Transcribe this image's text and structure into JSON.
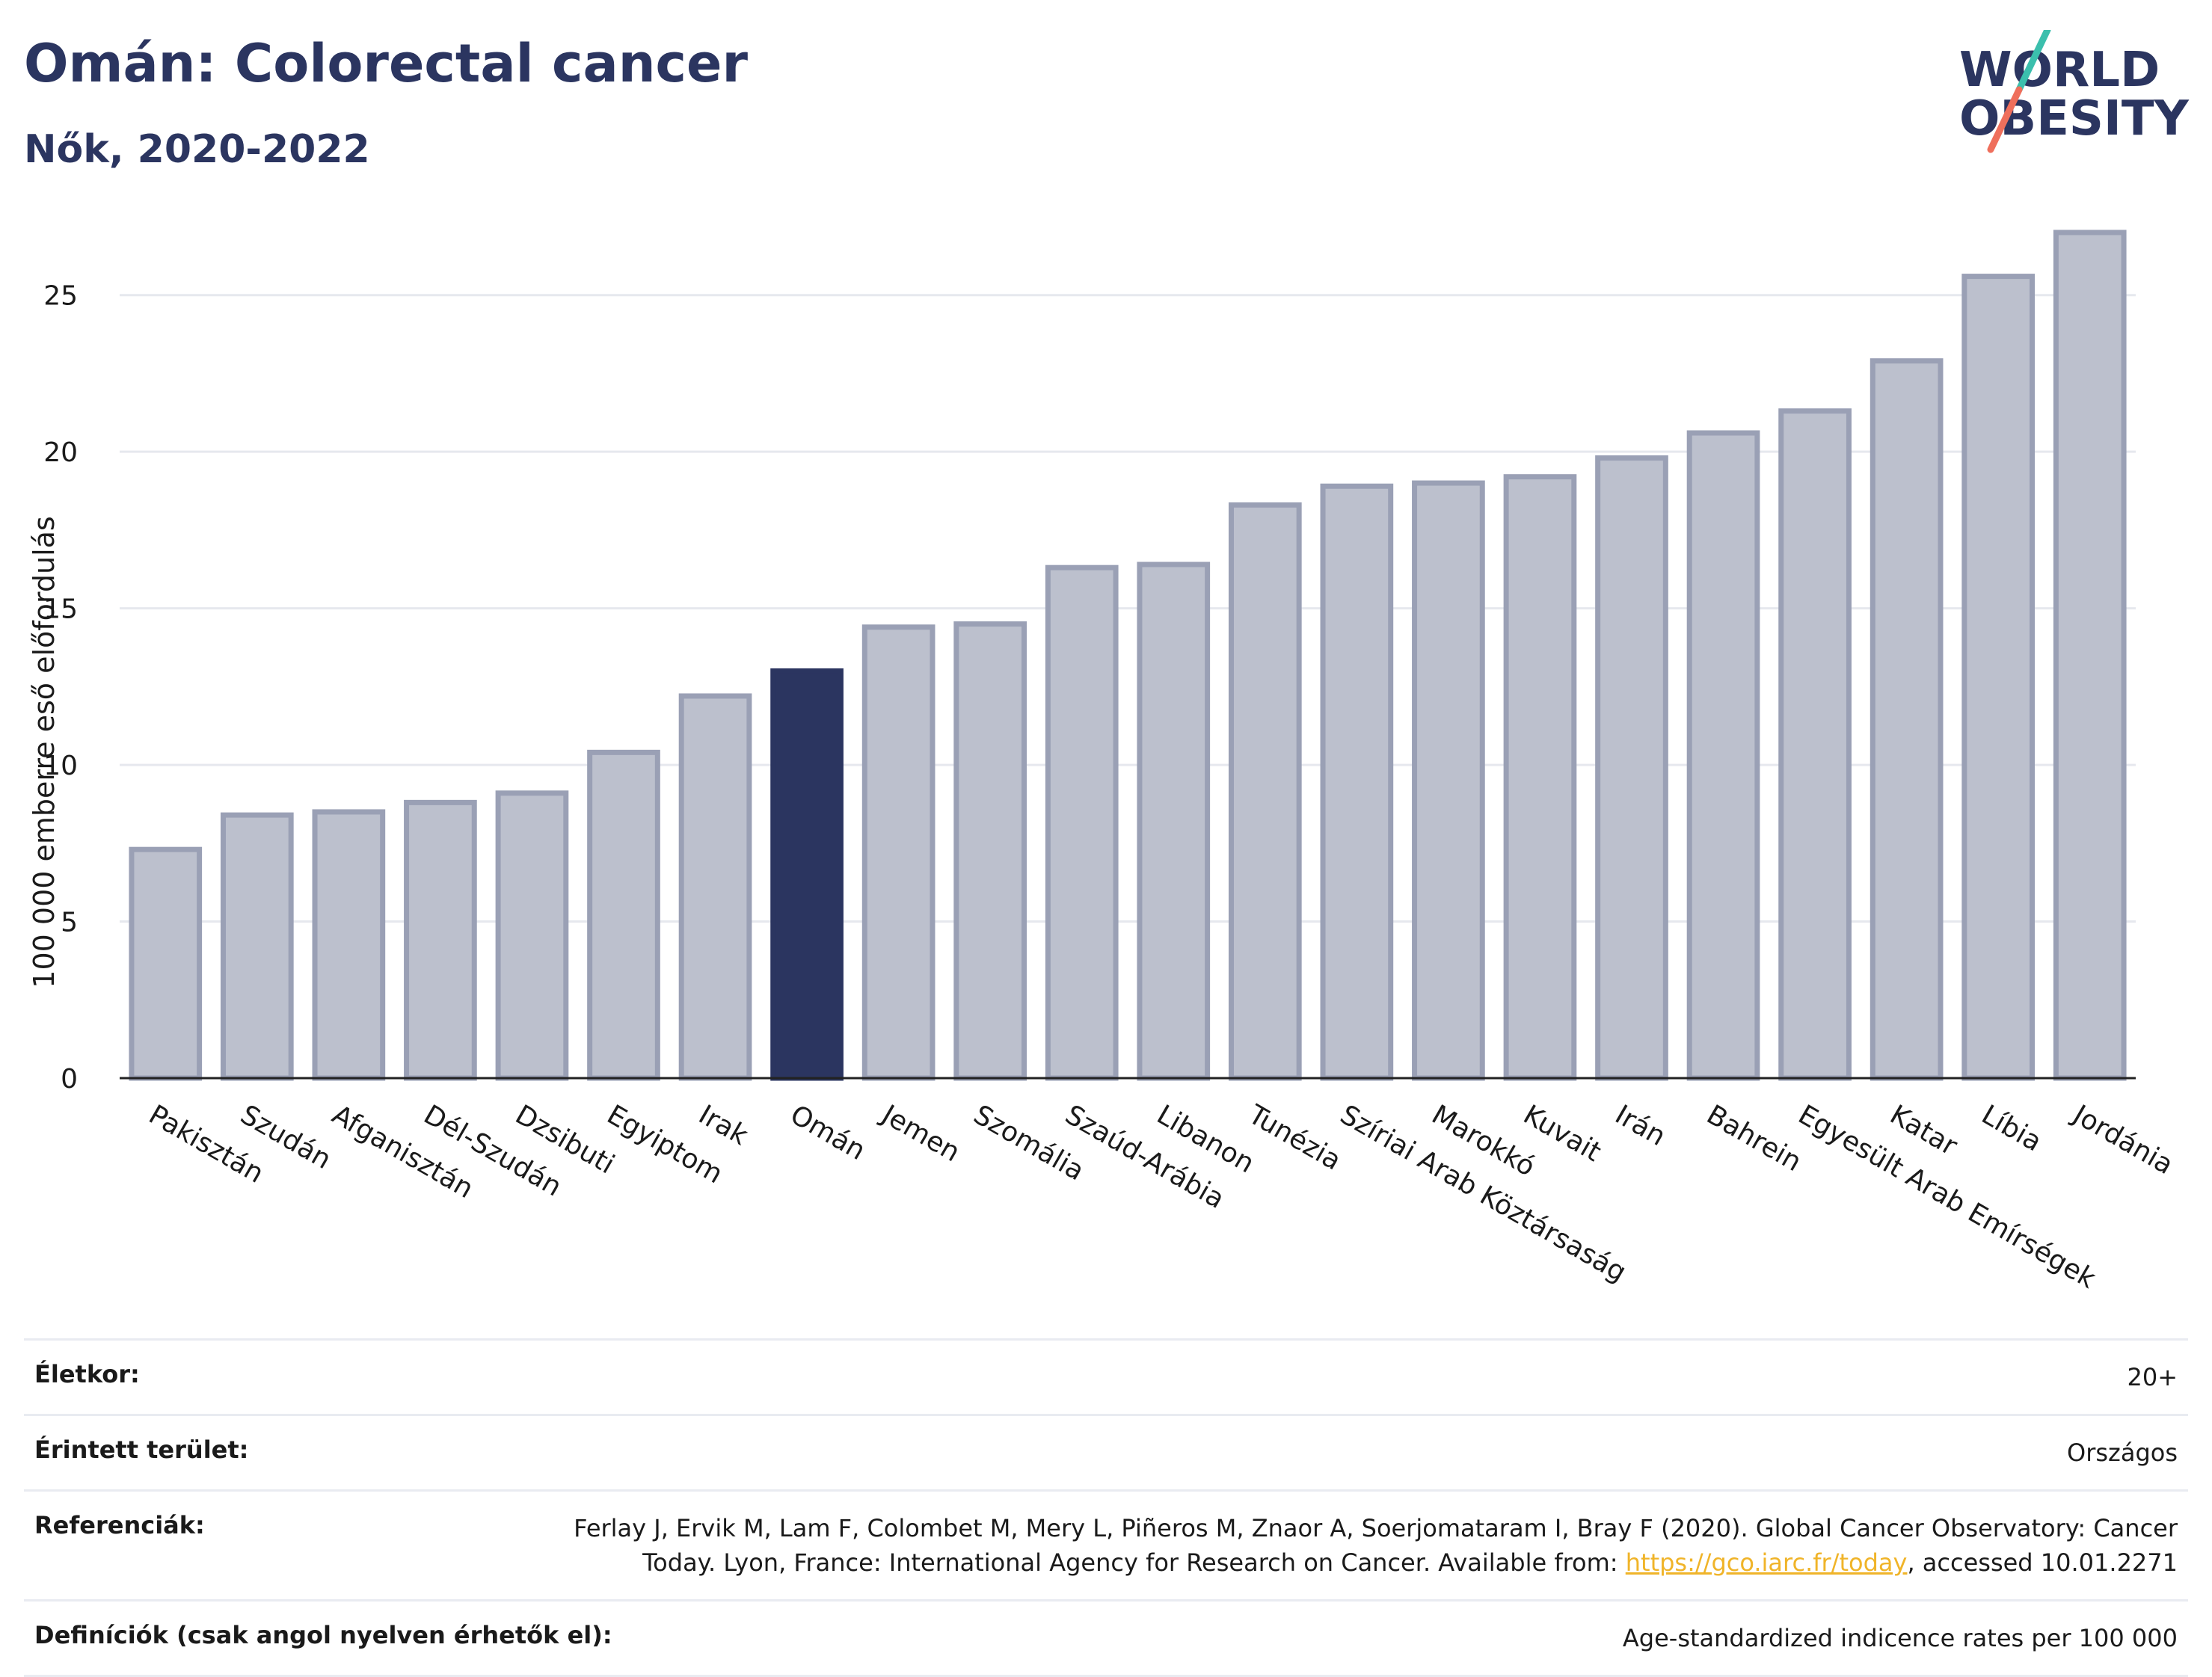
{
  "header": {
    "title": "Omán: Colorectal cancer",
    "subtitle": "Nők, 2020-2022"
  },
  "logo": {
    "line1": "WORLD",
    "line2": "OBESITY",
    "slash_colors": [
      "#3bbfad",
      "#ef6f5c"
    ],
    "text_color": "#2b3560"
  },
  "colors": {
    "highlight": "#2b3560",
    "bar_fill": "#bcc0cd",
    "bar_stroke": "#9aa0b5",
    "grid": "#e6e8ee",
    "axis": "#222222"
  },
  "chart_data": {
    "type": "bar",
    "title": "Omán: Colorectal cancer",
    "subtitle": "Nők, 2020-2022",
    "ylabel": "100 000 emberre eső előfordulás",
    "xlabel": "",
    "ylim": [
      0,
      27.5
    ],
    "yticks": [
      0,
      5,
      10,
      15,
      20,
      25
    ],
    "grid": true,
    "highlight_category": "Omán",
    "categories": [
      "Pakisztán",
      "Szudán",
      "Afganisztán",
      "Dél-Szudán",
      "Dzsibuti",
      "Egyiptom",
      "Irak",
      "Omán",
      "Jemen",
      "Szomália",
      "Szaúd-Arábia",
      "Libanon",
      "Tunézia",
      "Szíriai Arab Köztársaság",
      "Marokkó",
      "Kuvait",
      "Irán",
      "Bahrein",
      "Egyesült Arab Emírségek",
      "Katar",
      "Líbia",
      "Jordánia"
    ],
    "values": [
      7.3,
      8.4,
      8.5,
      8.8,
      9.1,
      10.4,
      12.2,
      13.0,
      14.4,
      14.5,
      16.3,
      16.4,
      18.3,
      18.9,
      19.0,
      19.2,
      19.8,
      20.6,
      21.3,
      22.9,
      25.6,
      27.0
    ]
  },
  "meta": {
    "rows": [
      {
        "label": "Életkor:",
        "value": "20+"
      },
      {
        "label": "Érintett terület:",
        "value": "Országos"
      },
      {
        "label": "Referenciák:",
        "value_line1": "Ferlay J, Ervik M, Lam F, Colombet M, Mery L, Piñeros M, Znaor A, Soerjomataram I, Bray F (2020). Global Cancer Observatory: Cancer",
        "value_line2_pre": "Today. Lyon, France: International Agency for Research on Cancer. Available from: ",
        "link": "https://gco.iarc.fr/today",
        "value_line2_post": ", accessed 10.01.2271"
      },
      {
        "label": "Definíciók (csak angol nyelven érhetők el):",
        "value": "Age-standardized indicence rates per 100 000"
      }
    ]
  }
}
